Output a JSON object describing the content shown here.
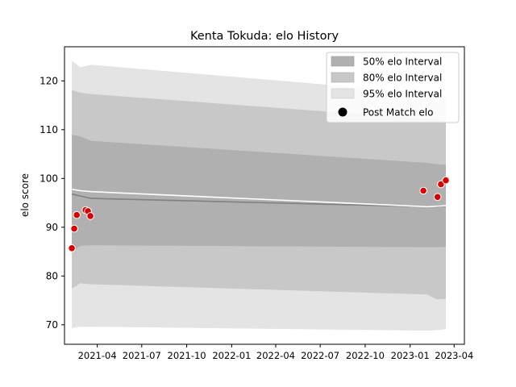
{
  "chart_data": {
    "type": "line",
    "title": "Kenta Tokuda: elo History",
    "xlabel": "",
    "ylabel": "elo score",
    "xlim": [
      "2021-01-24",
      "2023-04-22"
    ],
    "ylim": [
      66,
      127
    ],
    "x_ticks": [
      "2021-04",
      "2021-07",
      "2021-10",
      "2022-01",
      "2022-04",
      "2022-07",
      "2022-10",
      "2023-01",
      "2023-04"
    ],
    "y_ticks": [
      70,
      80,
      90,
      100,
      110,
      120
    ],
    "legend": {
      "position": "top-right",
      "entries": [
        "50% elo Interval",
        "80% elo Interval",
        "95% elo Interval",
        "Post Match elo"
      ]
    },
    "colors": {
      "band_50": "#b0b0b0",
      "band_80": "#c8c8c8",
      "band_95": "#e4e4e4",
      "mean_line": "#808080",
      "median_line": "#ffffff",
      "points": "#dd0000"
    },
    "band_dates": [
      "2021-02-08",
      "2021-02-25",
      "2021-03-20",
      "2023-02-05",
      "2023-02-24",
      "2023-03-15"
    ],
    "series": [
      {
        "role": "band_95",
        "lower": [
          69.3,
          69.6,
          69.6,
          68.8,
          68.9,
          69.1
        ],
        "upper": [
          124.1,
          122.8,
          123.3,
          117.5,
          117.2,
          117.0
        ]
      },
      {
        "role": "band_80",
        "lower": [
          77.4,
          78.5,
          78.3,
          76.2,
          75.2,
          75.3
        ],
        "upper": [
          118.1,
          117.6,
          117.3,
          112.2,
          112.0,
          111.8
        ]
      },
      {
        "role": "band_50",
        "lower": [
          84.8,
          86.2,
          86.3,
          85.9,
          85.9,
          86.0
        ],
        "upper": [
          109.0,
          108.6,
          107.7,
          103.2,
          102.9,
          102.8
        ]
      },
      {
        "role": "mean_line",
        "values": [
          96.8,
          96.4,
          95.9,
          94.2,
          94.2,
          94.3
        ]
      },
      {
        "role": "median_line",
        "values": [
          97.8,
          97.5,
          97.3,
          94.2,
          94.3,
          94.4
        ]
      },
      {
        "name": "Post Match elo",
        "role": "points",
        "points": [
          {
            "x": "2021-02-08",
            "y": 85.7
          },
          {
            "x": "2021-02-13",
            "y": 89.7
          },
          {
            "x": "2021-02-18",
            "y": 92.5
          },
          {
            "x": "2021-03-08",
            "y": 93.5
          },
          {
            "x": "2021-03-13",
            "y": 93.3
          },
          {
            "x": "2021-03-18",
            "y": 92.3
          },
          {
            "x": "2023-01-28",
            "y": 97.5
          },
          {
            "x": "2023-02-26",
            "y": 96.2
          },
          {
            "x": "2023-03-05",
            "y": 98.8
          },
          {
            "x": "2023-03-15",
            "y": 99.6
          }
        ]
      }
    ]
  }
}
